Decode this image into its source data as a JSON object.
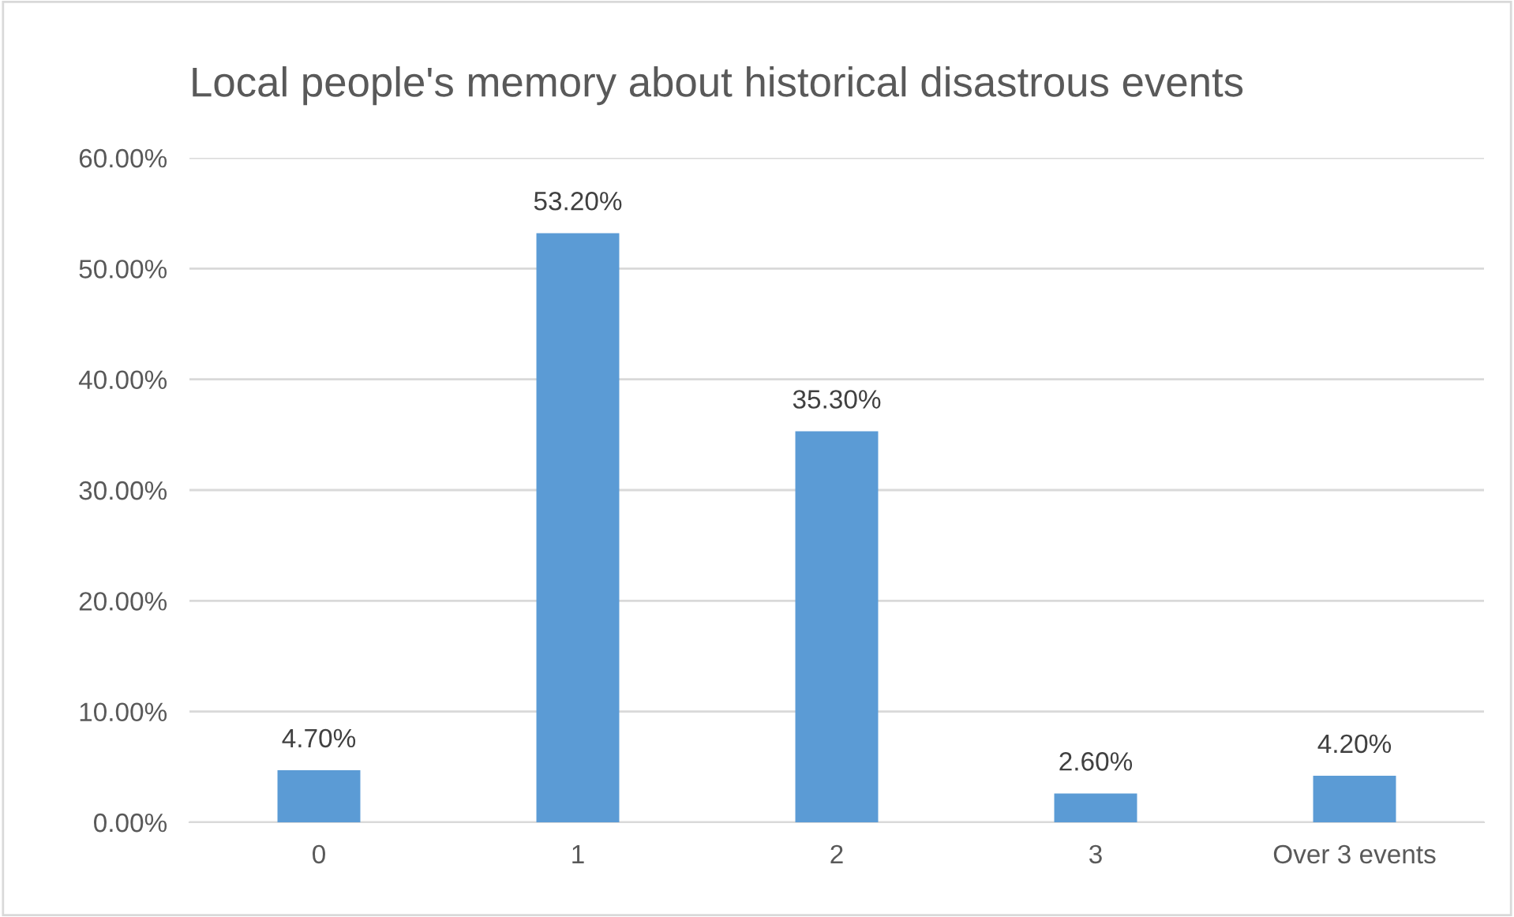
{
  "chart_data": {
    "type": "bar",
    "title": "Local people's memory about historical disastrous events",
    "categories": [
      "0",
      "1",
      "2",
      "3",
      "Over 3 events"
    ],
    "values": [
      4.7,
      53.2,
      35.3,
      2.6,
      4.2
    ],
    "value_labels": [
      "4.70%",
      "53.20%",
      "35.30%",
      "2.60%",
      "4.20%"
    ],
    "color": "#5b9bd5",
    "ylim": [
      0,
      60
    ],
    "yticks": [
      {
        "value": 0,
        "label": "0.00%"
      },
      {
        "value": 10,
        "label": "10.00%"
      },
      {
        "value": 20,
        "label": "20.00%"
      },
      {
        "value": 30,
        "label": "30.00%"
      },
      {
        "value": 40,
        "label": "40.00%"
      },
      {
        "value": 50,
        "label": "50.00%"
      },
      {
        "value": 60,
        "label": "60.00%"
      }
    ],
    "grid": "y"
  }
}
